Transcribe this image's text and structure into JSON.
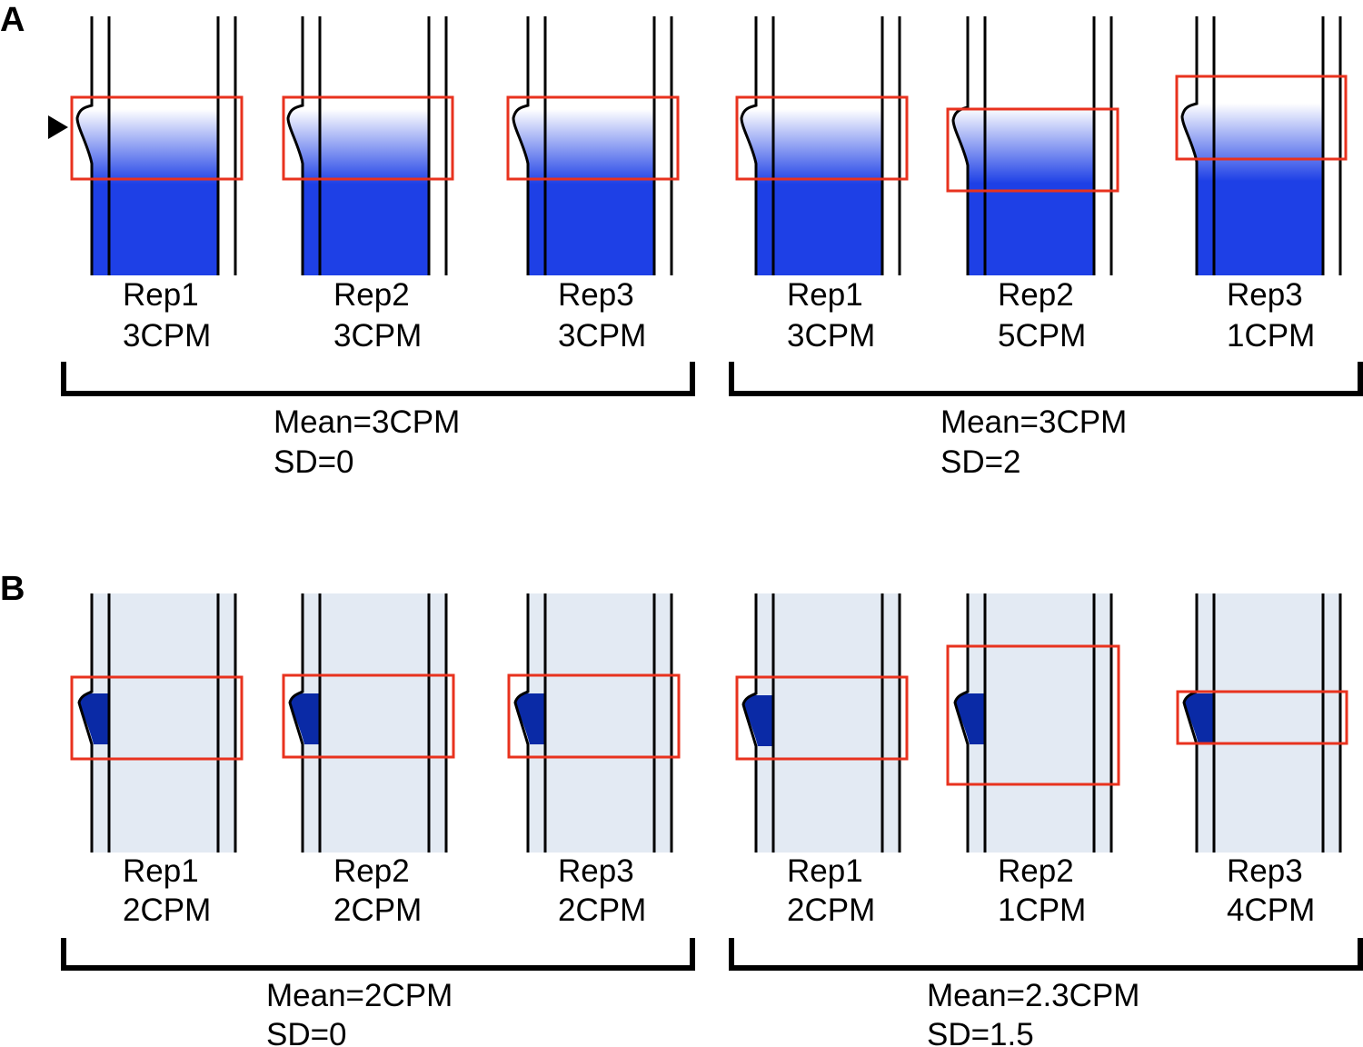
{
  "colors": {
    "gradient_top": "#ffffff",
    "gradient_bottom": "#1e40e6",
    "lane_b": "#e3eaf3",
    "band_b": "#0a2aa6",
    "box": "#e8321e"
  },
  "panels": [
    {
      "letter": "A",
      "marker_icon": "triangle-arrow-icon",
      "groups": [
        {
          "mean": "Mean=3CPM",
          "sd": "SD=0",
          "lanes": [
            {
              "rep": "Rep1",
              "cpm": "3CPM"
            },
            {
              "rep": "Rep2",
              "cpm": "3CPM"
            },
            {
              "rep": "Rep3",
              "cpm": "3CPM"
            }
          ]
        },
        {
          "mean": "Mean=3CPM",
          "sd": "SD=2",
          "lanes": [
            {
              "rep": "Rep1",
              "cpm": "3CPM"
            },
            {
              "rep": "Rep2",
              "cpm": "5CPM"
            },
            {
              "rep": "Rep3",
              "cpm": "1CPM"
            }
          ]
        }
      ]
    },
    {
      "letter": "B",
      "groups": [
        {
          "mean": "Mean=2CPM",
          "sd": "SD=0",
          "lanes": [
            {
              "rep": "Rep1",
              "cpm": "2CPM"
            },
            {
              "rep": "Rep2",
              "cpm": "2CPM"
            },
            {
              "rep": "Rep3",
              "cpm": "2CPM"
            }
          ]
        },
        {
          "mean": "Mean=2.3CPM",
          "sd": "SD=1.5",
          "lanes": [
            {
              "rep": "Rep1",
              "cpm": "2CPM"
            },
            {
              "rep": "Rep2",
              "cpm": "1CPM"
            },
            {
              "rep": "Rep3",
              "cpm": "4CPM"
            }
          ]
        }
      ]
    }
  ]
}
